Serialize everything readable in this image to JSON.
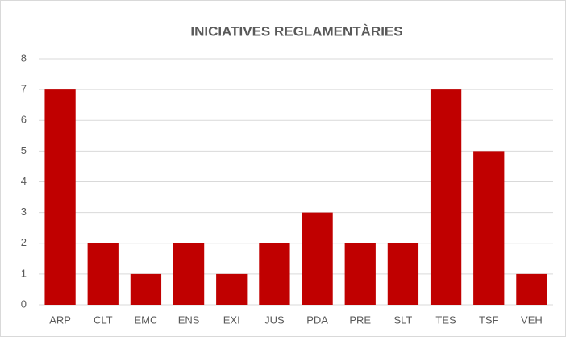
{
  "chart_data": {
    "type": "bar",
    "title": "INICIATIVES REGLAMENTÀRIES",
    "categories": [
      "ARP",
      "CLT",
      "EMC",
      "ENS",
      "EXI",
      "JUS",
      "PDA",
      "PRE",
      "SLT",
      "TES",
      "TSF",
      "VEH"
    ],
    "values": [
      7,
      2,
      1,
      2,
      1,
      2,
      3,
      2,
      2,
      7,
      5,
      1
    ],
    "color": "#c00000",
    "ylim": [
      0,
      8
    ],
    "yticks": [
      0,
      1,
      2,
      3,
      4,
      5,
      6,
      7,
      8
    ],
    "grid": true
  }
}
